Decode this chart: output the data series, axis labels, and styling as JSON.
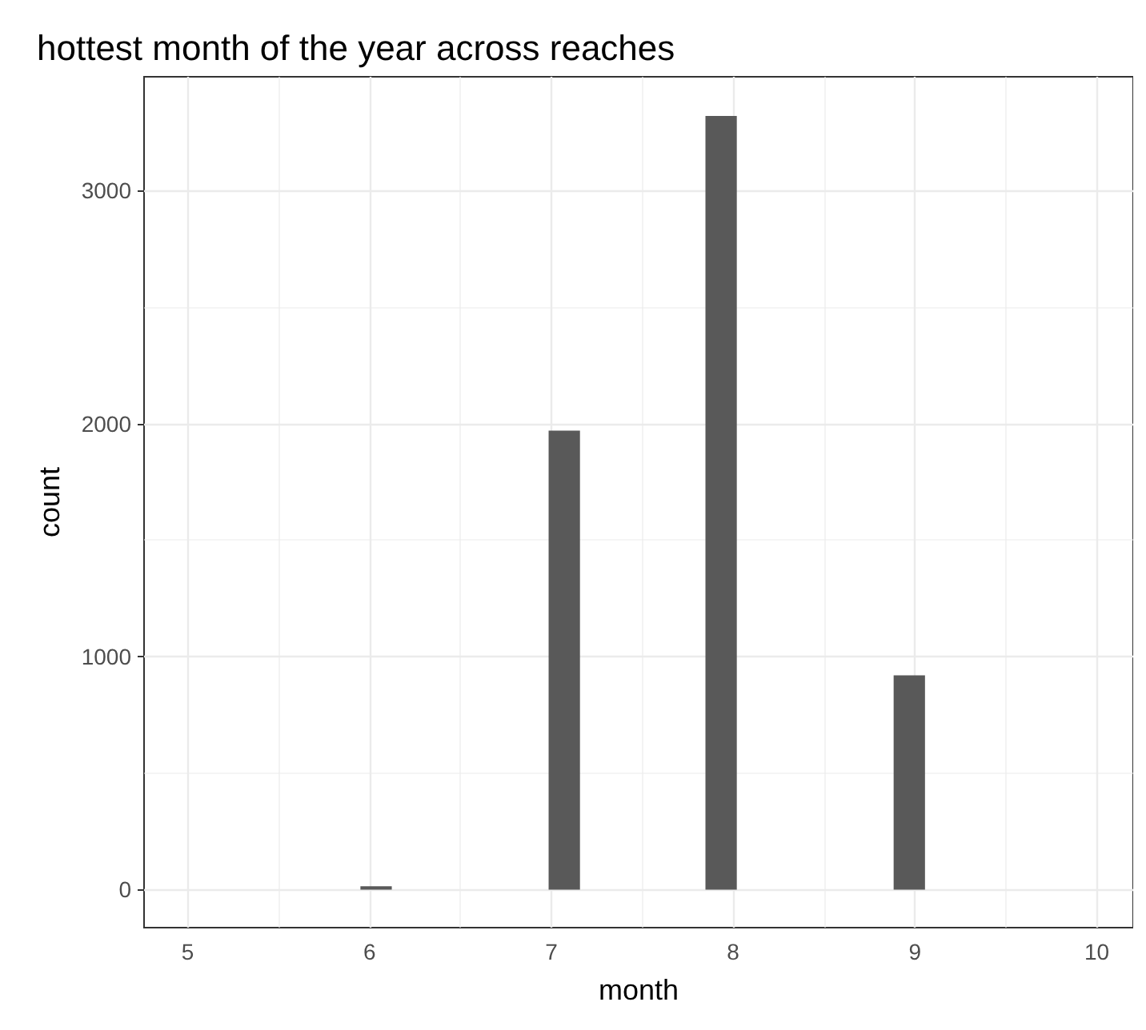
{
  "chart_data": {
    "type": "histogram",
    "title": "hottest month of the year across reaches",
    "xlabel": "month",
    "ylabel": "count",
    "bins": [
      5.95,
      6.1225,
      6.295,
      6.4675,
      6.64,
      6.8125,
      6.985,
      7.1575,
      7.33,
      7.5025,
      7.675,
      7.8475,
      8.02,
      8.1925,
      8.365,
      8.5375,
      8.71,
      8.8825,
      9.055
    ],
    "values": [
      15,
      0,
      0,
      0,
      0,
      0,
      1970,
      0,
      0,
      0,
      0,
      3320,
      0,
      0,
      0,
      0,
      0,
      920
    ],
    "color": "#595959",
    "xlim": [
      4.76,
      10.2
    ],
    "xticks": [
      5,
      6,
      7,
      8,
      9,
      10
    ],
    "ylim": [
      -163,
      3488
    ],
    "yticks": [
      0,
      1000,
      2000,
      3000
    ],
    "grid": true
  }
}
